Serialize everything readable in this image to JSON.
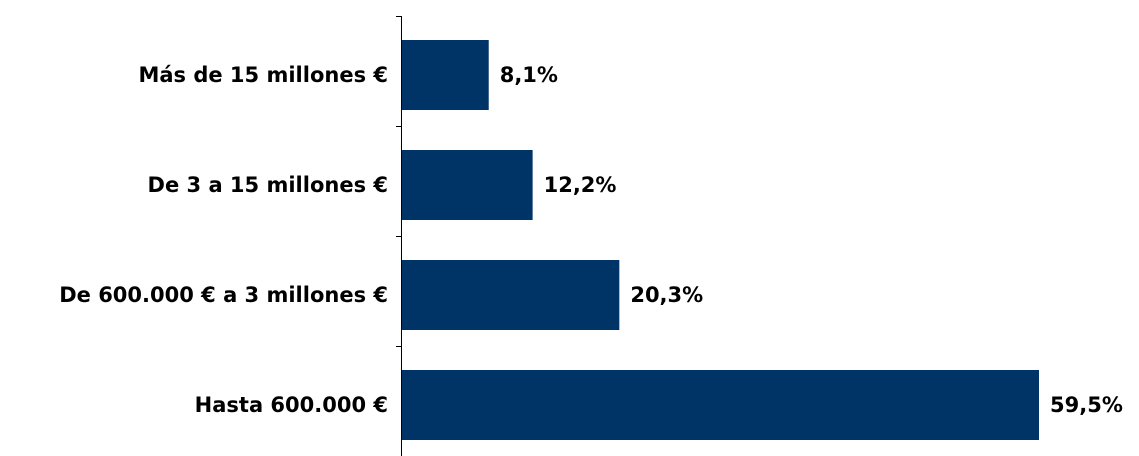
{
  "chart_data": {
    "type": "bar",
    "orientation": "horizontal",
    "categories": [
      "Más de 15 millones €",
      "De 3 a 15 millones €",
      "De 600.000 € a 3 millones €",
      "Hasta 600.000 €"
    ],
    "values": [
      8.1,
      12.2,
      20.3,
      59.5
    ],
    "value_labels": [
      "8,1%",
      "12,2%",
      "20,3%",
      "59,5%"
    ],
    "xlim": [
      0,
      59.5
    ],
    "grid": false,
    "bar_color": "#003366"
  }
}
